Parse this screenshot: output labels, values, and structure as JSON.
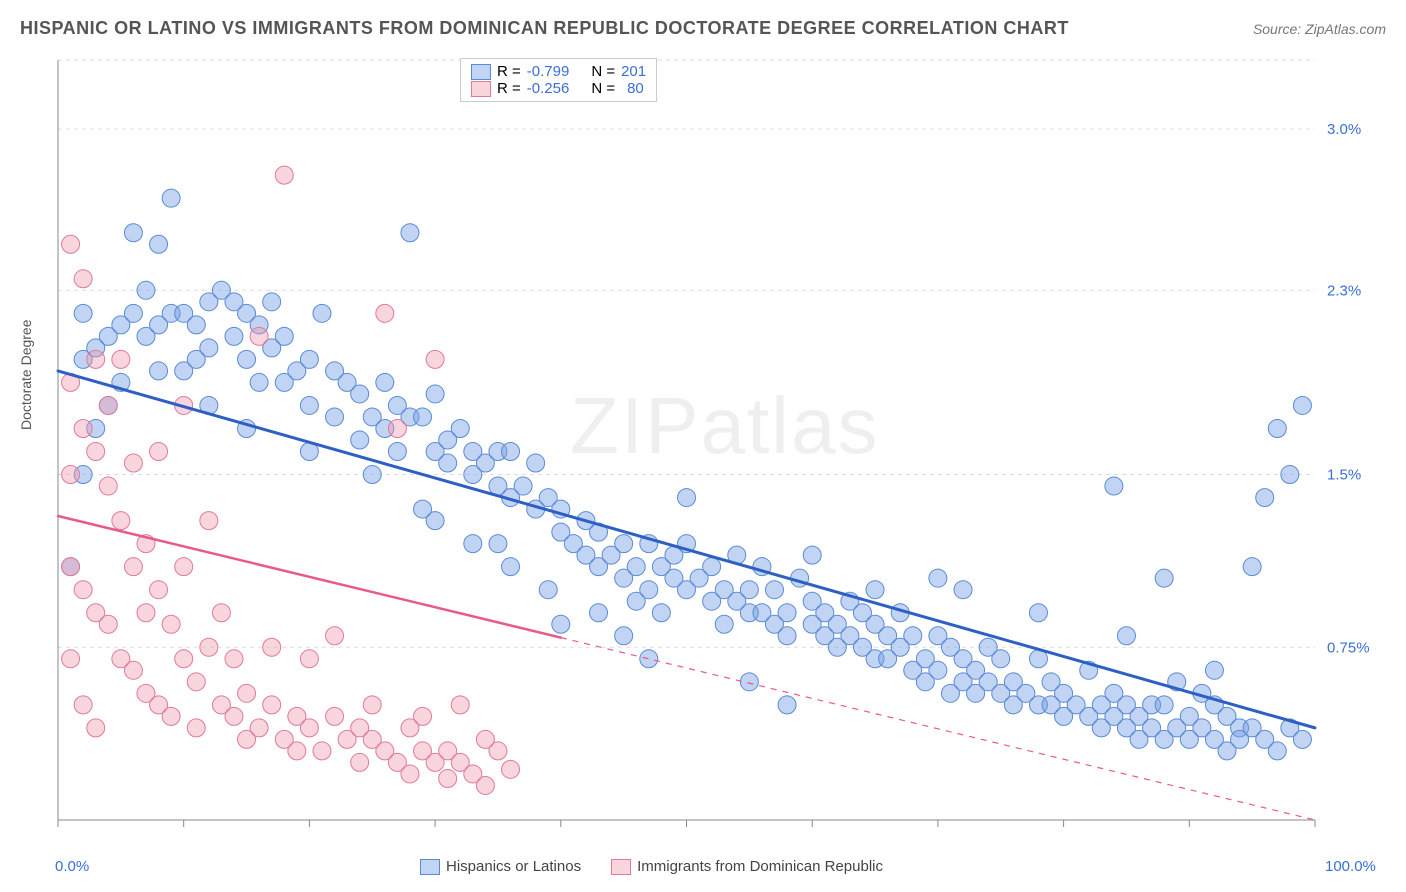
{
  "title": "HISPANIC OR LATINO VS IMMIGRANTS FROM DOMINICAN REPUBLIC DOCTORATE DEGREE CORRELATION CHART",
  "source": "Source: ZipAtlas.com",
  "ylabel": "Doctorate Degree",
  "watermark": "ZIPatlas",
  "chart": {
    "type": "scatter",
    "xlim": [
      0,
      100
    ],
    "ylim": [
      0,
      3.3
    ],
    "xticks": [
      0,
      10,
      20,
      30,
      40,
      50,
      60,
      70,
      80,
      90,
      100
    ],
    "xtick_labels_shown": {
      "0": "0.0%",
      "100": "100.0%"
    },
    "yticks": [
      0.75,
      1.5,
      2.3,
      3.0
    ],
    "ytick_labels": [
      "0.75%",
      "1.5%",
      "2.3%",
      "3.0%"
    ],
    "background_color": "#ffffff",
    "grid_color": "#dddddd",
    "axis_color": "#888888"
  },
  "series": [
    {
      "name": "Hispanics or Latinos",
      "R": "-0.799",
      "N": "201",
      "marker_fill": "rgba(120,160,230,0.45)",
      "marker_stroke": "#5a8bd6",
      "marker_radius": 9,
      "line_color": "#2e5fc4",
      "line_width": 3,
      "trend": {
        "x1": 0,
        "y1": 1.95,
        "x2": 100,
        "y2": 0.4,
        "dash_after_x": 100
      },
      "points": [
        [
          1,
          1.1
        ],
        [
          2,
          2.0
        ],
        [
          2,
          2.2
        ],
        [
          3,
          2.05
        ],
        [
          3,
          1.7
        ],
        [
          4,
          2.1
        ],
        [
          5,
          2.15
        ],
        [
          5,
          1.9
        ],
        [
          6,
          2.55
        ],
        [
          6,
          2.2
        ],
        [
          7,
          2.3
        ],
        [
          7,
          2.1
        ],
        [
          8,
          2.15
        ],
        [
          8,
          1.95
        ],
        [
          9,
          2.7
        ],
        [
          9,
          2.2
        ],
        [
          10,
          2.2
        ],
        [
          10,
          1.95
        ],
        [
          11,
          2.15
        ],
        [
          11,
          2.0
        ],
        [
          12,
          2.25
        ],
        [
          12,
          2.05
        ],
        [
          13,
          2.3
        ],
        [
          14,
          2.25
        ],
        [
          14,
          2.1
        ],
        [
          15,
          2.2
        ],
        [
          15,
          2.0
        ],
        [
          16,
          2.15
        ],
        [
          16,
          1.9
        ],
        [
          17,
          2.25
        ],
        [
          17,
          2.05
        ],
        [
          18,
          2.1
        ],
        [
          18,
          1.9
        ],
        [
          19,
          1.95
        ],
        [
          20,
          2.0
        ],
        [
          20,
          1.8
        ],
        [
          21,
          2.2
        ],
        [
          22,
          1.95
        ],
        [
          22,
          1.75
        ],
        [
          23,
          1.9
        ],
        [
          24,
          1.85
        ],
        [
          24,
          1.65
        ],
        [
          25,
          1.75
        ],
        [
          26,
          1.9
        ],
        [
          26,
          1.7
        ],
        [
          27,
          1.8
        ],
        [
          27,
          1.6
        ],
        [
          28,
          1.75
        ],
        [
          28,
          2.55
        ],
        [
          29,
          1.75
        ],
        [
          30,
          1.85
        ],
        [
          30,
          1.6
        ],
        [
          31,
          1.65
        ],
        [
          31,
          1.55
        ],
        [
          32,
          1.7
        ],
        [
          33,
          1.6
        ],
        [
          33,
          1.5
        ],
        [
          34,
          1.55
        ],
        [
          35,
          1.6
        ],
        [
          35,
          1.45
        ],
        [
          36,
          1.6
        ],
        [
          36,
          1.4
        ],
        [
          37,
          1.45
        ],
        [
          38,
          1.55
        ],
        [
          38,
          1.35
        ],
        [
          39,
          1.4
        ],
        [
          40,
          1.35
        ],
        [
          40,
          1.25
        ],
        [
          41,
          1.2
        ],
        [
          42,
          1.15
        ],
        [
          42,
          1.3
        ],
        [
          43,
          1.25
        ],
        [
          43,
          1.1
        ],
        [
          44,
          1.15
        ],
        [
          45,
          1.2
        ],
        [
          45,
          1.05
        ],
        [
          46,
          1.1
        ],
        [
          46,
          0.95
        ],
        [
          47,
          1.2
        ],
        [
          47,
          1.0
        ],
        [
          48,
          1.1
        ],
        [
          48,
          0.9
        ],
        [
          49,
          1.15
        ],
        [
          49,
          1.05
        ],
        [
          50,
          1.0
        ],
        [
          50,
          1.2
        ],
        [
          51,
          1.05
        ],
        [
          52,
          0.95
        ],
        [
          52,
          1.1
        ],
        [
          53,
          1.0
        ],
        [
          53,
          0.85
        ],
        [
          54,
          0.95
        ],
        [
          54,
          1.15
        ],
        [
          55,
          0.9
        ],
        [
          55,
          1.0
        ],
        [
          56,
          1.1
        ],
        [
          56,
          0.9
        ],
        [
          57,
          0.85
        ],
        [
          57,
          1.0
        ],
        [
          58,
          0.9
        ],
        [
          58,
          0.8
        ],
        [
          59,
          1.05
        ],
        [
          60,
          0.85
        ],
        [
          60,
          0.95
        ],
        [
          61,
          0.8
        ],
        [
          61,
          0.9
        ],
        [
          62,
          0.85
        ],
        [
          62,
          0.75
        ],
        [
          63,
          0.95
        ],
        [
          63,
          0.8
        ],
        [
          64,
          0.75
        ],
        [
          64,
          0.9
        ],
        [
          65,
          0.7
        ],
        [
          65,
          0.85
        ],
        [
          66,
          0.8
        ],
        [
          66,
          0.7
        ],
        [
          67,
          0.75
        ],
        [
          67,
          0.9
        ],
        [
          68,
          0.65
        ],
        [
          68,
          0.8
        ],
        [
          69,
          0.7
        ],
        [
          69,
          0.6
        ],
        [
          70,
          0.8
        ],
        [
          70,
          0.65
        ],
        [
          71,
          0.75
        ],
        [
          71,
          0.55
        ],
        [
          72,
          0.7
        ],
        [
          72,
          0.6
        ],
        [
          73,
          0.65
        ],
        [
          73,
          0.55
        ],
        [
          74,
          0.6
        ],
        [
          74,
          0.75
        ],
        [
          75,
          0.55
        ],
        [
          75,
          0.7
        ],
        [
          76,
          0.6
        ],
        [
          76,
          0.5
        ],
        [
          77,
          0.55
        ],
        [
          78,
          0.7
        ],
        [
          78,
          0.5
        ],
        [
          79,
          0.5
        ],
        [
          79,
          0.6
        ],
        [
          80,
          0.55
        ],
        [
          80,
          0.45
        ],
        [
          81,
          0.5
        ],
        [
          82,
          0.65
        ],
        [
          82,
          0.45
        ],
        [
          83,
          0.5
        ],
        [
          83,
          0.4
        ],
        [
          84,
          0.55
        ],
        [
          84,
          0.45
        ],
        [
          85,
          0.4
        ],
        [
          85,
          0.5
        ],
        [
          86,
          0.45
        ],
        [
          86,
          0.35
        ],
        [
          87,
          0.5
        ],
        [
          87,
          0.4
        ],
        [
          88,
          0.35
        ],
        [
          88,
          0.5
        ],
        [
          89,
          0.4
        ],
        [
          89,
          0.6
        ],
        [
          90,
          0.35
        ],
        [
          90,
          0.45
        ],
        [
          91,
          0.4
        ],
        [
          91,
          0.55
        ],
        [
          92,
          0.35
        ],
        [
          92,
          0.5
        ],
        [
          93,
          0.3
        ],
        [
          93,
          0.45
        ],
        [
          94,
          0.4
        ],
        [
          94,
          0.35
        ],
        [
          95,
          0.4
        ],
        [
          95,
          1.1
        ],
        [
          96,
          0.35
        ],
        [
          96,
          1.4
        ],
        [
          97,
          0.3
        ],
        [
          97,
          1.7
        ],
        [
          98,
          0.4
        ],
        [
          98,
          1.5
        ],
        [
          99,
          0.35
        ],
        [
          99,
          1.8
        ],
        [
          84,
          1.45
        ],
        [
          72,
          1.0
        ],
        [
          60,
          1.15
        ],
        [
          50,
          1.4
        ],
        [
          45,
          0.8
        ],
        [
          40,
          0.85
        ],
        [
          35,
          1.2
        ],
        [
          30,
          1.3
        ],
        [
          25,
          1.5
        ],
        [
          20,
          1.6
        ],
        [
          15,
          1.7
        ],
        [
          12,
          1.8
        ],
        [
          8,
          2.5
        ],
        [
          4,
          1.8
        ],
        [
          2,
          1.5
        ],
        [
          55,
          0.6
        ],
        [
          58,
          0.5
        ],
        [
          47,
          0.7
        ],
        [
          43,
          0.9
        ],
        [
          39,
          1.0
        ],
        [
          36,
          1.1
        ],
        [
          33,
          1.2
        ],
        [
          29,
          1.35
        ],
        [
          65,
          1.0
        ],
        [
          70,
          1.05
        ],
        [
          78,
          0.9
        ],
        [
          85,
          0.8
        ],
        [
          92,
          0.65
        ],
        [
          88,
          1.05
        ]
      ]
    },
    {
      "name": "Immigrants from Dominican Republic",
      "R": "-0.256",
      "N": "80",
      "marker_fill": "rgba(240,150,170,0.40)",
      "marker_stroke": "#e07a9a",
      "marker_radius": 9,
      "line_color": "#e85a8a",
      "line_width": 2.5,
      "trend": {
        "x1": 0,
        "y1": 1.32,
        "x2": 100,
        "y2": 0.0,
        "dash_after_x": 40
      },
      "points": [
        [
          1,
          2.5
        ],
        [
          1,
          1.9
        ],
        [
          1,
          1.5
        ],
        [
          1,
          1.1
        ],
        [
          2,
          2.35
        ],
        [
          2,
          1.7
        ],
        [
          2,
          1.0
        ],
        [
          3,
          1.6
        ],
        [
          3,
          0.9
        ],
        [
          3,
          2.0
        ],
        [
          4,
          1.45
        ],
        [
          4,
          0.85
        ],
        [
          4,
          1.8
        ],
        [
          5,
          1.3
        ],
        [
          5,
          0.7
        ],
        [
          6,
          1.55
        ],
        [
          6,
          0.65
        ],
        [
          6,
          1.1
        ],
        [
          7,
          1.2
        ],
        [
          7,
          0.55
        ],
        [
          7,
          0.9
        ],
        [
          8,
          1.0
        ],
        [
          8,
          0.5
        ],
        [
          8,
          1.6
        ],
        [
          9,
          0.85
        ],
        [
          9,
          0.45
        ],
        [
          10,
          0.7
        ],
        [
          10,
          1.1
        ],
        [
          11,
          0.6
        ],
        [
          11,
          0.4
        ],
        [
          12,
          0.75
        ],
        [
          12,
          1.3
        ],
        [
          13,
          0.5
        ],
        [
          13,
          0.9
        ],
        [
          14,
          0.45
        ],
        [
          14,
          0.7
        ],
        [
          15,
          0.55
        ],
        [
          15,
          0.35
        ],
        [
          16,
          0.4
        ],
        [
          16,
          2.1
        ],
        [
          17,
          0.5
        ],
        [
          17,
          0.75
        ],
        [
          18,
          0.35
        ],
        [
          18,
          2.8
        ],
        [
          19,
          0.45
        ],
        [
          19,
          0.3
        ],
        [
          20,
          0.4
        ],
        [
          20,
          0.7
        ],
        [
          21,
          0.3
        ],
        [
          22,
          0.45
        ],
        [
          22,
          0.8
        ],
        [
          23,
          0.35
        ],
        [
          24,
          0.4
        ],
        [
          24,
          0.25
        ],
        [
          25,
          0.35
        ],
        [
          25,
          0.5
        ],
        [
          26,
          0.3
        ],
        [
          26,
          2.2
        ],
        [
          27,
          0.25
        ],
        [
          27,
          1.7
        ],
        [
          28,
          0.4
        ],
        [
          28,
          0.2
        ],
        [
          29,
          0.3
        ],
        [
          29,
          0.45
        ],
        [
          30,
          0.25
        ],
        [
          30,
          2.0
        ],
        [
          31,
          0.3
        ],
        [
          31,
          0.18
        ],
        [
          32,
          0.25
        ],
        [
          32,
          0.5
        ],
        [
          33,
          0.2
        ],
        [
          34,
          0.35
        ],
        [
          34,
          0.15
        ],
        [
          35,
          0.3
        ],
        [
          36,
          0.22
        ],
        [
          1,
          0.7
        ],
        [
          2,
          0.5
        ],
        [
          3,
          0.4
        ],
        [
          5,
          2.0
        ],
        [
          10,
          1.8
        ]
      ]
    }
  ],
  "legend_bottom": [
    {
      "label": "Hispanics or Latinos",
      "fill": "rgba(120,160,230,0.45)",
      "stroke": "#5a8bd6"
    },
    {
      "label": "Immigrants from Dominican Republic",
      "fill": "rgba(240,150,170,0.40)",
      "stroke": "#e07a9a"
    }
  ]
}
